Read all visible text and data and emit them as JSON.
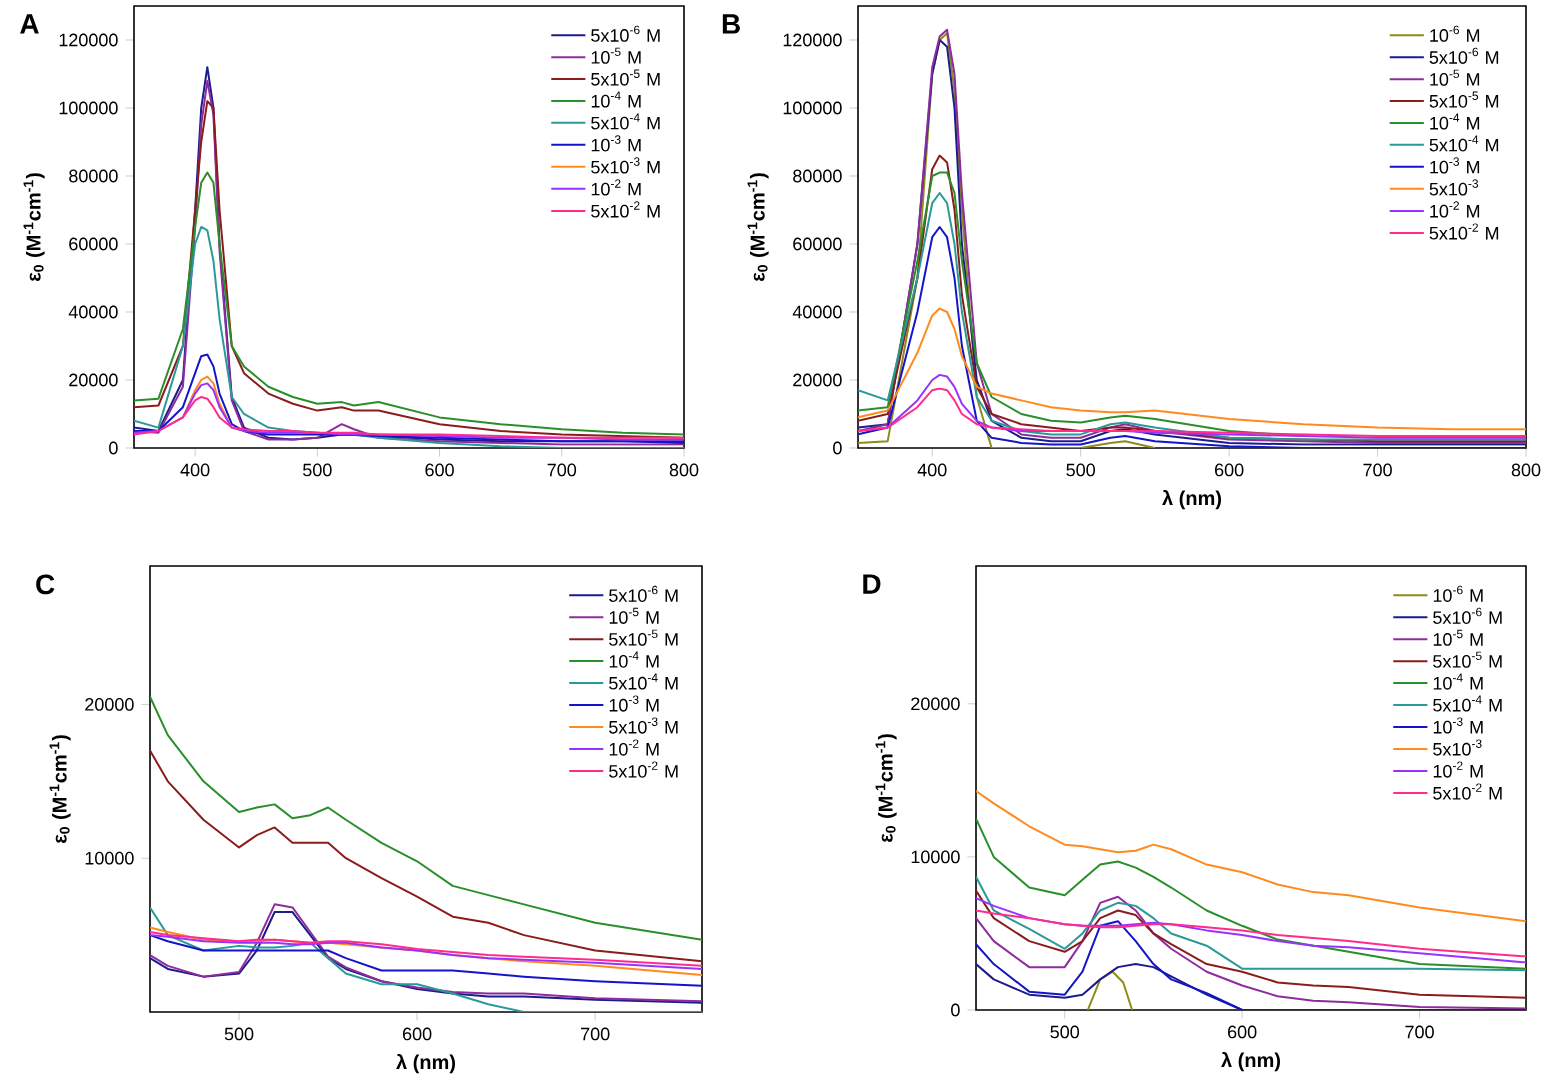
{
  "chart_data": [
    {
      "type": "line",
      "title": "A",
      "ylabel": "ε$_{0}$ (M$^{-1}$cm$^{-1}$)",
      "xlim": [
        350,
        800
      ],
      "ylim": [
        0,
        130000
      ],
      "xticks": [
        400,
        500,
        600,
        700,
        800
      ],
      "yticks": [
        0,
        20000,
        40000,
        60000,
        80000,
        100000,
        120000
      ],
      "legend": "top right",
      "x": [
        350,
        370,
        390,
        400,
        405,
        410,
        415,
        420,
        430,
        440,
        460,
        480,
        500,
        520,
        530,
        550,
        600,
        650,
        700,
        750,
        800
      ],
      "series": [
        {
          "name": "5x10$^{-6}$ M",
          "color": "#1c1c8c",
          "values": [
            6000,
            5000,
            20000,
            70000,
            100000,
            112000,
            100000,
            60000,
            15000,
            6000,
            3000,
            2500,
            3000,
            4000,
            4000,
            3500,
            2500,
            2000,
            2000,
            2000,
            2000
          ]
        },
        {
          "name": "10$^{-5}$ M",
          "color": "#8e2c9e",
          "values": [
            5000,
            4500,
            18000,
            65000,
            95000,
            108000,
            98000,
            58000,
            14000,
            5000,
            2500,
            2500,
            3000,
            7000,
            5500,
            3000,
            2000,
            1500,
            1000,
            1000,
            1000
          ]
        },
        {
          "name": "5x10$^{-5}$ M",
          "color": "#8b1c1c",
          "values": [
            12000,
            12500,
            30000,
            70000,
            90000,
            102000,
            100000,
            70000,
            30000,
            22000,
            16000,
            13000,
            11000,
            12000,
            11000,
            11000,
            7000,
            5000,
            4000,
            3500,
            3000
          ]
        },
        {
          "name": "10$^{-4}$ M",
          "color": "#2a8f2a",
          "values": [
            14000,
            14500,
            35000,
            65000,
            78000,
            81000,
            78000,
            60000,
            30000,
            24000,
            18000,
            15000,
            13000,
            13500,
            12500,
            13500,
            9000,
            7000,
            5500,
            4500,
            4000
          ]
        },
        {
          "name": "5x10$^{-4}$ M",
          "color": "#2a9a98",
          "values": [
            8000,
            6000,
            30000,
            60000,
            65000,
            64000,
            55000,
            38000,
            15000,
            10000,
            6000,
            5000,
            4500,
            4000,
            4000,
            3000,
            1500,
            500,
            0,
            0,
            0
          ]
        },
        {
          "name": "10$^{-3}$ M",
          "color": "#1414c8",
          "values": [
            5000,
            5000,
            12000,
            22000,
            27000,
            27500,
            24000,
            16000,
            7000,
            5000,
            4000,
            4000,
            4000,
            3800,
            3800,
            3500,
            3000,
            2500,
            2000,
            2000,
            1500
          ]
        },
        {
          "name": "5x10$^{-3}$ M",
          "color": "#ff8a1e",
          "values": [
            null,
            null,
            9000,
            17000,
            20000,
            21000,
            19000,
            13000,
            6000,
            null,
            null,
            null,
            null,
            null,
            null,
            null,
            null,
            null,
            null,
            null,
            null
          ]
        },
        {
          "name": "10$^{-2}$ M",
          "color": "#9a32ff",
          "values": [
            4500,
            5000,
            9000,
            16000,
            18500,
            19000,
            17000,
            12000,
            6000,
            5000,
            4500,
            4500,
            4500,
            4000,
            4000,
            4000,
            3500,
            3000,
            3000,
            2500,
            2500
          ]
        },
        {
          "name": "5x10$^{-2}$ M",
          "color": "#ff2c8c",
          "values": [
            4000,
            5000,
            9000,
            14000,
            15000,
            14500,
            12000,
            9000,
            6000,
            5500,
            5000,
            5000,
            4500,
            4500,
            4500,
            4000,
            4000,
            3500,
            3000,
            3000,
            3000
          ]
        }
      ]
    },
    {
      "type": "line",
      "title": "B",
      "xlabel": "λ (nm)",
      "ylabel": "ε$_{0}$ (M$^{-1}$cm$^{-1}$)",
      "xlim": [
        350,
        800
      ],
      "ylim": [
        0,
        130000
      ],
      "xticks": [
        400,
        500,
        600,
        700,
        800
      ],
      "yticks": [
        0,
        20000,
        40000,
        60000,
        80000,
        100000,
        120000
      ],
      "legend": "top right",
      "x": [
        350,
        370,
        390,
        400,
        405,
        410,
        415,
        420,
        430,
        440,
        460,
        480,
        500,
        520,
        530,
        550,
        600,
        650,
        700,
        750,
        800
      ],
      "series": [
        {
          "name": "10$^{-6}$ M",
          "color": "#8c8c1c",
          "values": [
            1500,
            2000,
            50000,
            110000,
            120000,
            122000,
            105000,
            70000,
            15000,
            0,
            0,
            0,
            0,
            1500,
            2000,
            0,
            null,
            null,
            null,
            null,
            null
          ]
        },
        {
          "name": "5x10$^{-6}$ M",
          "color": "#1c1c8c",
          "values": [
            6000,
            7000,
            60000,
            110000,
            120000,
            118000,
            100000,
            60000,
            20000,
            8000,
            3000,
            2000,
            2000,
            5000,
            5500,
            4000,
            1500,
            1000,
            1000,
            1000,
            1000
          ]
        },
        {
          "name": "10$^{-5}$ M",
          "color": "#8e2c9e",
          "values": [
            5000,
            7000,
            60000,
            112000,
            121000,
            123000,
            110000,
            75000,
            25000,
            10000,
            4000,
            3000,
            3000,
            6000,
            7000,
            5000,
            2500,
            2000,
            1500,
            1500,
            1500
          ]
        },
        {
          "name": "5x10$^{-5}$ M",
          "color": "#8b1c1c",
          "values": [
            8000,
            10000,
            50000,
            82000,
            86000,
            84000,
            70000,
            45000,
            18000,
            10000,
            7000,
            6000,
            5000,
            6000,
            6000,
            5000,
            3000,
            2500,
            2000,
            2000,
            2000
          ]
        },
        {
          "name": "10$^{-4}$ M",
          "color": "#2a8f2a",
          "values": [
            11000,
            12000,
            55000,
            80000,
            81000,
            81000,
            75000,
            55000,
            25000,
            15000,
            10000,
            8000,
            7500,
            9000,
            9500,
            8500,
            5000,
            3500,
            null,
            null,
            null
          ]
        },
        {
          "name": "5x10$^{-4}$ M",
          "color": "#2a9a98",
          "values": [
            17000,
            14000,
            50000,
            72000,
            75000,
            72000,
            60000,
            40000,
            15000,
            8000,
            5000,
            4000,
            4000,
            7000,
            7500,
            6000,
            3000,
            2500,
            2500,
            2500,
            2500
          ]
        },
        {
          "name": "10$^{-3}$ M",
          "color": "#1414c8",
          "values": [
            4000,
            6000,
            40000,
            62000,
            65000,
            62000,
            50000,
            30000,
            8000,
            3000,
            1500,
            1000,
            1000,
            3000,
            3500,
            2000,
            500,
            0,
            0,
            0,
            0
          ]
        },
        {
          "name": "5x10$^{-3}$",
          "color": "#ff8a1e",
          "values": [
            9000,
            11000,
            28000,
            39000,
            41000,
            40000,
            35000,
            27000,
            18000,
            16000,
            14000,
            12000,
            11000,
            10500,
            10500,
            11000,
            8500,
            7000,
            6000,
            5500,
            5500
          ]
        },
        {
          "name": "10$^{-2}$ M",
          "color": "#9a32ff",
          "values": [
            5000,
            6000,
            14000,
            20000,
            21500,
            21000,
            18000,
            13000,
            8000,
            6000,
            5000,
            5000,
            5000,
            5000,
            5000,
            4500,
            4000,
            3500,
            3000,
            3000,
            3000
          ]
        },
        {
          "name": "5x10$^{-2}$ M",
          "color": "#ff2c8c",
          "values": [
            5000,
            6000,
            12000,
            17000,
            17500,
            17000,
            14000,
            10000,
            7000,
            6000,
            5500,
            5000,
            5000,
            5000,
            5000,
            5000,
            4500,
            4000,
            3500,
            3500,
            3500
          ]
        }
      ]
    },
    {
      "type": "line",
      "title": "C",
      "xlabel": "λ (nm)",
      "ylabel": "ε$_{0}$ (M$^{-1}$cm$^{-1}$)",
      "xlim": [
        450,
        760
      ],
      "ylim": [
        0,
        29000
      ],
      "xticks": [
        500,
        600,
        700
      ],
      "yticks": [
        10000,
        20000
      ],
      "legend": "top right",
      "x": [
        450,
        460,
        480,
        500,
        510,
        520,
        530,
        540,
        550,
        560,
        580,
        600,
        620,
        640,
        660,
        700,
        760
      ],
      "series": [
        {
          "name": "5x10$^{-6}$ M",
          "color": "#1c1c8c",
          "values": [
            3500,
            2800,
            2300,
            2500,
            4000,
            6500,
            6500,
            5000,
            3500,
            2800,
            2000,
            1500,
            1200,
            1000,
            1000,
            800,
            600
          ]
        },
        {
          "name": "10$^{-5}$ M",
          "color": "#8e2c9e",
          "values": [
            3700,
            3000,
            2300,
            2600,
            4500,
            7000,
            6800,
            5200,
            3600,
            2900,
            2000,
            1600,
            1300,
            1200,
            1200,
            900,
            700
          ]
        },
        {
          "name": "5x10$^{-5}$ M",
          "color": "#8b1c1c",
          "values": [
            17000,
            15000,
            12500,
            10700,
            11500,
            12000,
            11000,
            11000,
            11000,
            10000,
            8700,
            7500,
            6200,
            5800,
            5000,
            4000,
            3300
          ]
        },
        {
          "name": "10$^{-4}$ M",
          "color": "#2a8f2a",
          "values": [
            20500,
            18000,
            15000,
            13000,
            13300,
            13500,
            12600,
            12800,
            13300,
            12500,
            11000,
            9800,
            8200,
            7600,
            7000,
            5800,
            4700
          ]
        },
        {
          "name": "5x10$^{-4}$ M",
          "color": "#2a9a98",
          "values": [
            6800,
            5000,
            4000,
            4300,
            4200,
            4200,
            4300,
            4500,
            3500,
            2500,
            1800,
            1800,
            1200,
            500,
            0,
            0,
            0
          ]
        },
        {
          "name": "10$^{-3}$ M",
          "color": "#1414c8",
          "values": [
            5000,
            4600,
            4000,
            4000,
            4000,
            4000,
            4000,
            4000,
            4000,
            3500,
            2700,
            2700,
            2700,
            2500,
            2300,
            2000,
            1700
          ]
        },
        {
          "name": "5x10$^{-3}$ M",
          "color": "#ff8a1e",
          "values": [
            5500,
            5200,
            4700,
            4600,
            4600,
            4700,
            4600,
            4500,
            4500,
            4400,
            4200,
            4000,
            3700,
            3500,
            3300,
            3000,
            2400
          ]
        },
        {
          "name": "10$^{-2}$ M",
          "color": "#9a32ff",
          "values": [
            5000,
            4900,
            4600,
            4500,
            4500,
            4500,
            4400,
            4400,
            4500,
            4500,
            4200,
            4000,
            3700,
            3500,
            3400,
            3200,
            2800
          ]
        },
        {
          "name": "5x10$^{-2}$ M",
          "color": "#ff2c8c",
          "values": [
            5200,
            5000,
            4800,
            4600,
            4700,
            4700,
            4600,
            4500,
            4600,
            4600,
            4400,
            4100,
            3900,
            3700,
            3600,
            3400,
            3000
          ]
        }
      ]
    },
    {
      "type": "line",
      "title": "D",
      "xlabel": "λ (nm)",
      "ylabel": "ε$_{0}$ (M$^{-1}$cm$^{-1}$)",
      "xlim": [
        450,
        760
      ],
      "ylim": [
        0,
        29000
      ],
      "xticks": [
        500,
        600,
        700
      ],
      "yticks": [
        0,
        10000,
        20000
      ],
      "legend": "top right",
      "x": [
        450,
        460,
        480,
        500,
        510,
        520,
        530,
        540,
        550,
        560,
        580,
        600,
        620,
        640,
        660,
        700,
        760
      ],
      "series": [
        {
          "name": "10$^{-6}$ M",
          "color": "#8c8c1c",
          "x": [
            513,
            520,
            527,
            533,
            538
          ],
          "values": [
            0,
            2000,
            2500,
            1800,
            0
          ]
        },
        {
          "name": "5x10$^{-6}$ M",
          "color": "#1c1c8c",
          "values": [
            3000,
            2000,
            1000,
            800,
            1000,
            2000,
            2800,
            3000,
            2800,
            2200,
            1000,
            0,
            null,
            null,
            null,
            null,
            null
          ]
        },
        {
          "name": "10$^{-5}$ M",
          "color": "#8e2c9e",
          "values": [
            6000,
            4500,
            2800,
            2800,
            4500,
            7000,
            7400,
            6500,
            5000,
            4000,
            2500,
            1600,
            900,
            600,
            500,
            200,
            100
          ]
        },
        {
          "name": "5x10$^{-5}$ M",
          "color": "#8b1c1c",
          "values": [
            7800,
            6000,
            4500,
            3800,
            4500,
            6000,
            6500,
            6200,
            5000,
            4300,
            3000,
            2500,
            1800,
            1600,
            1500,
            1000,
            800
          ]
        },
        {
          "name": "10$^{-4}$ M",
          "color": "#2a8f2a",
          "values": [
            12500,
            10000,
            8000,
            7500,
            8500,
            9500,
            9700,
            9300,
            8700,
            8000,
            6500,
            5500,
            4600,
            4200,
            3800,
            3000,
            2700
          ]
        },
        {
          "name": "5x10$^{-4}$ M",
          "color": "#2a9a98",
          "values": [
            8700,
            6500,
            5300,
            4000,
            5000,
            6500,
            7000,
            6800,
            6000,
            5000,
            4200,
            2700,
            2700,
            2700,
            2700,
            2700,
            2600
          ]
        },
        {
          "name": "10$^{-3}$ M",
          "color": "#1414c8",
          "values": [
            4300,
            3000,
            1200,
            1000,
            2500,
            5500,
            5800,
            4500,
            3000,
            2000,
            1100,
            0,
            0,
            0,
            0,
            0,
            0
          ]
        },
        {
          "name": "5x10$^{-3}$",
          "color": "#ff8a1e",
          "values": [
            14300,
            13500,
            12000,
            10800,
            10700,
            10500,
            10300,
            10400,
            10800,
            10500,
            9500,
            9000,
            8200,
            7700,
            7500,
            6700,
            5800
          ]
        },
        {
          "name": "10$^{-2}$ M",
          "color": "#9a32ff",
          "values": [
            7300,
            6800,
            6000,
            5600,
            5500,
            5500,
            5500,
            5600,
            5700,
            5600,
            5200,
            4900,
            4500,
            4200,
            4100,
            3700,
            3100
          ]
        },
        {
          "name": "5x10$^{-2}$ M",
          "color": "#ff2c8c",
          "values": [
            6500,
            6300,
            6000,
            5600,
            5500,
            5400,
            5400,
            5500,
            5600,
            5600,
            5400,
            5200,
            4900,
            4700,
            4500,
            4000,
            3500
          ]
        }
      ]
    }
  ]
}
